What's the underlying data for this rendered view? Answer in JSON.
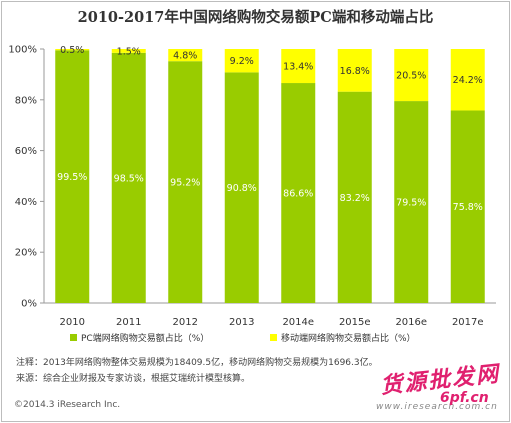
{
  "title": "2010-2017年中国网络购物交易额PC端和移动端占比",
  "chart_data": {
    "type": "bar",
    "stacked": true,
    "percent_stacked": true,
    "categories": [
      "2010",
      "2011",
      "2012",
      "2013",
      "2014e",
      "2015e",
      "2016e",
      "2017e"
    ],
    "series": [
      {
        "name": "PC端网络购物交易额占比（%）",
        "color": "#99cc00",
        "values": [
          99.5,
          98.5,
          95.2,
          90.8,
          86.6,
          83.2,
          79.5,
          75.8
        ],
        "labels": [
          "99.5%",
          "98.5%",
          "95.2%",
          "90.8%",
          "86.6%",
          "83.2%",
          "79.5%",
          "75.8%"
        ]
      },
      {
        "name": "移动端网络购物交易额占比（%）",
        "color": "#ffff00",
        "values": [
          0.5,
          1.5,
          4.8,
          9.2,
          13.4,
          16.8,
          20.5,
          24.2
        ],
        "labels": [
          "0.5%",
          "1.5%",
          "4.8%",
          "9.2%",
          "13.4%",
          "16.8%",
          "20.5%",
          "24.2%"
        ]
      }
    ],
    "yticks": [
      "0%",
      "20%",
      "40%",
      "60%",
      "80%",
      "100%"
    ],
    "ylim": [
      0,
      100
    ],
    "grid": false,
    "legend_position": "bottom"
  },
  "notes": {
    "note": "注释：2013年网络购物整体交易规模为18409.5亿，移动网络购物交易规模为1696.3亿。",
    "source": "来源：综合企业财报及专家访谈，根据艾瑞统计模型核算。"
  },
  "copyright": "©2014.3 iResearch Inc.",
  "source_url": "www.iresearch.com.cn",
  "watermark": {
    "cn": "货源批发网",
    "en": "6pf.cn"
  }
}
